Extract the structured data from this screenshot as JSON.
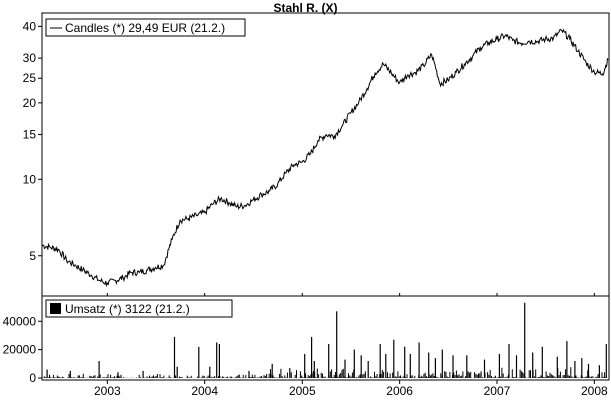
{
  "chart_data": [
    {
      "type": "line",
      "title": "Stahl R. (X)",
      "xlabel": "",
      "ylabel": "",
      "y_scale": "log",
      "ylim": [
        3.6,
        42
      ],
      "xlim": [
        "2002-05-01",
        "2008-02-25"
      ],
      "y_ticks": [
        5,
        10,
        15,
        20,
        25,
        30,
        40
      ],
      "x_ticks": [
        "2003",
        "2004",
        "2005",
        "2006",
        "2007",
        "2008"
      ],
      "grid": false,
      "legend": {
        "position": "top-left",
        "swatch": "line",
        "text": "Candles (*) 29,49 EUR (21.2.)"
      },
      "series": [
        {
          "name": "Candles (*) 29,49 EUR (21.2.)",
          "color": "#000000",
          "points": [
            [
              "2002-05-01",
              5.5
            ],
            [
              "2002-06-01",
              5.4
            ],
            [
              "2002-07-01",
              5.3
            ],
            [
              "2002-08-01",
              4.8
            ],
            [
              "2002-09-01",
              4.6
            ],
            [
              "2002-10-01",
              4.4
            ],
            [
              "2002-11-01",
              4.2
            ],
            [
              "2002-12-01",
              4.0
            ],
            [
              "2003-01-01",
              3.9
            ],
            [
              "2003-02-01",
              4.0
            ],
            [
              "2003-03-01",
              4.1
            ],
            [
              "2003-04-01",
              4.3
            ],
            [
              "2003-05-01",
              4.3
            ],
            [
              "2003-06-01",
              4.4
            ],
            [
              "2003-07-01",
              4.5
            ],
            [
              "2003-08-01",
              4.6
            ],
            [
              "2003-09-01",
              5.8
            ],
            [
              "2003-10-01",
              6.9
            ],
            [
              "2003-11-01",
              7.0
            ],
            [
              "2003-12-01",
              7.2
            ],
            [
              "2004-01-01",
              7.4
            ],
            [
              "2004-02-01",
              8.0
            ],
            [
              "2004-03-01",
              8.4
            ],
            [
              "2004-04-01",
              8.1
            ],
            [
              "2004-05-01",
              7.8
            ],
            [
              "2004-06-01",
              7.9
            ],
            [
              "2004-07-01",
              8.3
            ],
            [
              "2004-08-01",
              8.7
            ],
            [
              "2004-09-01",
              9.0
            ],
            [
              "2004-10-01",
              9.6
            ],
            [
              "2004-11-01",
              10.6
            ],
            [
              "2004-12-01",
              11.4
            ],
            [
              "2005-01-01",
              11.7
            ],
            [
              "2005-02-01",
              12.6
            ],
            [
              "2005-03-01",
              14.2
            ],
            [
              "2005-04-01",
              15.0
            ],
            [
              "2005-05-01",
              14.8
            ],
            [
              "2005-06-01",
              16.3
            ],
            [
              "2005-07-01",
              18.2
            ],
            [
              "2005-08-01",
              20.1
            ],
            [
              "2005-09-01",
              22.8
            ],
            [
              "2005-10-01",
              26.2
            ],
            [
              "2005-11-01",
              28.4
            ],
            [
              "2005-12-01",
              26.2
            ],
            [
              "2006-01-01",
              24.0
            ],
            [
              "2006-02-01",
              25.8
            ],
            [
              "2006-03-01",
              26.3
            ],
            [
              "2006-04-01",
              28.0
            ],
            [
              "2006-05-01",
              31.0
            ],
            [
              "2006-06-01",
              23.8
            ],
            [
              "2006-07-01",
              24.6
            ],
            [
              "2006-08-01",
              26.4
            ],
            [
              "2006-09-01",
              28.4
            ],
            [
              "2006-10-01",
              30.5
            ],
            [
              "2006-11-01",
              33.0
            ],
            [
              "2006-12-01",
              34.5
            ],
            [
              "2007-01-01",
              35.6
            ],
            [
              "2007-02-01",
              36.8
            ],
            [
              "2007-03-01",
              35.2
            ],
            [
              "2007-04-01",
              34.4
            ],
            [
              "2007-05-01",
              35.0
            ],
            [
              "2007-06-01",
              34.9
            ],
            [
              "2007-07-01",
              35.6
            ],
            [
              "2007-08-01",
              36.0
            ],
            [
              "2007-09-01",
              38.5
            ],
            [
              "2007-10-01",
              35.7
            ],
            [
              "2007-11-01",
              32.0
            ],
            [
              "2007-12-01",
              28.8
            ],
            [
              "2008-01-01",
              26.5
            ],
            [
              "2008-02-01",
              26.0
            ],
            [
              "2008-02-21",
              29.49
            ]
          ]
        }
      ]
    },
    {
      "type": "bar",
      "title": "",
      "xlabel": "",
      "ylabel": "",
      "ylim": [
        0,
        55000
      ],
      "xlim": [
        "2002-05-01",
        "2008-02-25"
      ],
      "y_ticks": [
        0,
        20000,
        40000
      ],
      "x_ticks": [
        "2003",
        "2004",
        "2005",
        "2006",
        "2007",
        "2008"
      ],
      "grid": false,
      "legend": {
        "position": "top-left",
        "swatch": "square",
        "text": "Umsatz (*) 3122 (21.2.)"
      },
      "series": [
        {
          "name": "Umsatz (*) 3122 (21.2.)",
          "color": "#000000",
          "spikes": [
            [
              "2002-05-20",
              6000
            ],
            [
              "2002-08-15",
              5000
            ],
            [
              "2002-12-01",
              12000
            ],
            [
              "2003-02-10",
              4000
            ],
            [
              "2003-05-15",
              5000
            ],
            [
              "2003-09-10",
              29000
            ],
            [
              "2003-09-20",
              8000
            ],
            [
              "2003-12-10",
              22000
            ],
            [
              "2004-01-20",
              8000
            ],
            [
              "2004-02-15",
              25000
            ],
            [
              "2004-02-25",
              24000
            ],
            [
              "2004-06-15",
              5000
            ],
            [
              "2004-09-10",
              10000
            ],
            [
              "2004-11-15",
              7000
            ],
            [
              "2005-01-10",
              17000
            ],
            [
              "2005-02-05",
              29000
            ],
            [
              "2005-02-15",
              12000
            ],
            [
              "2005-04-10",
              24000
            ],
            [
              "2005-05-10",
              47000
            ],
            [
              "2005-06-10",
              13000
            ],
            [
              "2005-07-15",
              20000
            ],
            [
              "2005-08-10",
              16000
            ],
            [
              "2005-09-05",
              12000
            ],
            [
              "2005-10-20",
              24000
            ],
            [
              "2005-11-10",
              17000
            ],
            [
              "2005-12-10",
              27000
            ],
            [
              "2006-01-20",
              22000
            ],
            [
              "2006-02-10",
              17000
            ],
            [
              "2006-03-15",
              25000
            ],
            [
              "2006-04-20",
              18000
            ],
            [
              "2006-05-15",
              14000
            ],
            [
              "2006-06-10",
              20000
            ],
            [
              "2006-07-20",
              16000
            ],
            [
              "2006-09-10",
              16000
            ],
            [
              "2006-11-15",
              13000
            ],
            [
              "2007-01-10",
              17000
            ],
            [
              "2007-02-15",
              24000
            ],
            [
              "2007-03-15",
              16000
            ],
            [
              "2007-04-15",
              53000
            ],
            [
              "2007-05-15",
              18000
            ],
            [
              "2007-06-20",
              22000
            ],
            [
              "2007-08-15",
              15000
            ],
            [
              "2007-09-20",
              26000
            ],
            [
              "2007-10-20",
              12000
            ],
            [
              "2007-11-15",
              14000
            ],
            [
              "2007-12-10",
              10000
            ],
            [
              "2008-01-20",
              9000
            ],
            [
              "2008-02-15",
              24000
            ]
          ]
        }
      ]
    }
  ]
}
